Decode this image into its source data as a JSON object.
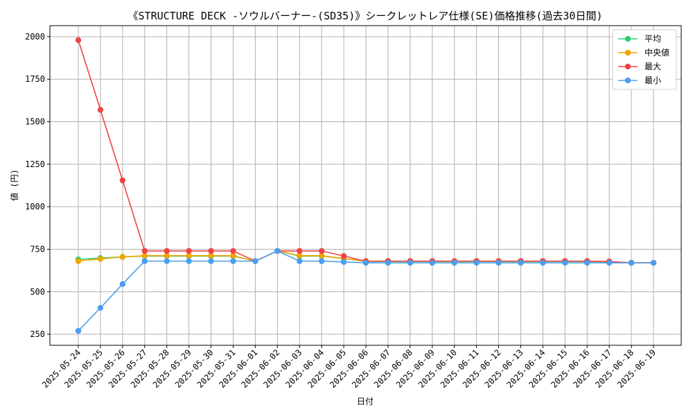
{
  "chart_data": {
    "type": "line",
    "title": "《STRUCTURE DECK -ソウルバーナー-(SD35)》シークレットレア仕様(SE)価格推移(過去30日間)",
    "xlabel": "日付",
    "ylabel": "値 (円)",
    "ylim": [
      185,
      2065
    ],
    "yticks": [
      250,
      500,
      750,
      1000,
      1250,
      1500,
      1750,
      2000
    ],
    "grid": true,
    "legend_position": "top-right",
    "categories": [
      "2025-05-24",
      "2025-05-25",
      "2025-05-26",
      "2025-05-27",
      "2025-05-28",
      "2025-05-29",
      "2025-05-30",
      "2025-05-31",
      "2025-06-01",
      "2025-06-02",
      "2025-06-03",
      "2025-06-04",
      "2025-06-05",
      "2025-06-06",
      "2025-06-07",
      "2025-06-08",
      "2025-06-09",
      "2025-06-10",
      "2025-06-11",
      "2025-06-12",
      "2025-06-13",
      "2025-06-14",
      "2025-06-15",
      "2025-06-16",
      "2025-06-17",
      "2025-06-18",
      "2025-06-19"
    ],
    "series": [
      {
        "name": "平均",
        "color": "#2ecc71",
        "values": [
          690,
          698,
          705,
          710,
          710,
          710,
          710,
          710,
          680,
          740,
          710,
          710,
          695,
          678,
          678,
          678,
          678,
          678,
          678,
          678,
          678,
          678,
          678,
          678,
          675,
          670,
          670
        ]
      },
      {
        "name": "中央値",
        "color": "#f0a500",
        "values": [
          680,
          693,
          705,
          712,
          712,
          712,
          712,
          712,
          680,
          740,
          712,
          712,
          695,
          680,
          680,
          680,
          680,
          680,
          680,
          680,
          680,
          680,
          680,
          680,
          675,
          670,
          670
        ]
      },
      {
        "name": "最大",
        "color": "#ef4444",
        "values": [
          1980,
          1570,
          1155,
          740,
          740,
          740,
          740,
          740,
          680,
          740,
          740,
          740,
          710,
          680,
          680,
          680,
          680,
          680,
          680,
          680,
          680,
          680,
          680,
          680,
          678,
          670,
          670
        ]
      },
      {
        "name": "最小",
        "color": "#4a9ef0",
        "values": [
          270,
          405,
          545,
          680,
          680,
          680,
          680,
          680,
          680,
          740,
          680,
          680,
          675,
          670,
          670,
          670,
          670,
          670,
          670,
          670,
          670,
          670,
          670,
          670,
          670,
          670,
          670
        ]
      }
    ]
  }
}
